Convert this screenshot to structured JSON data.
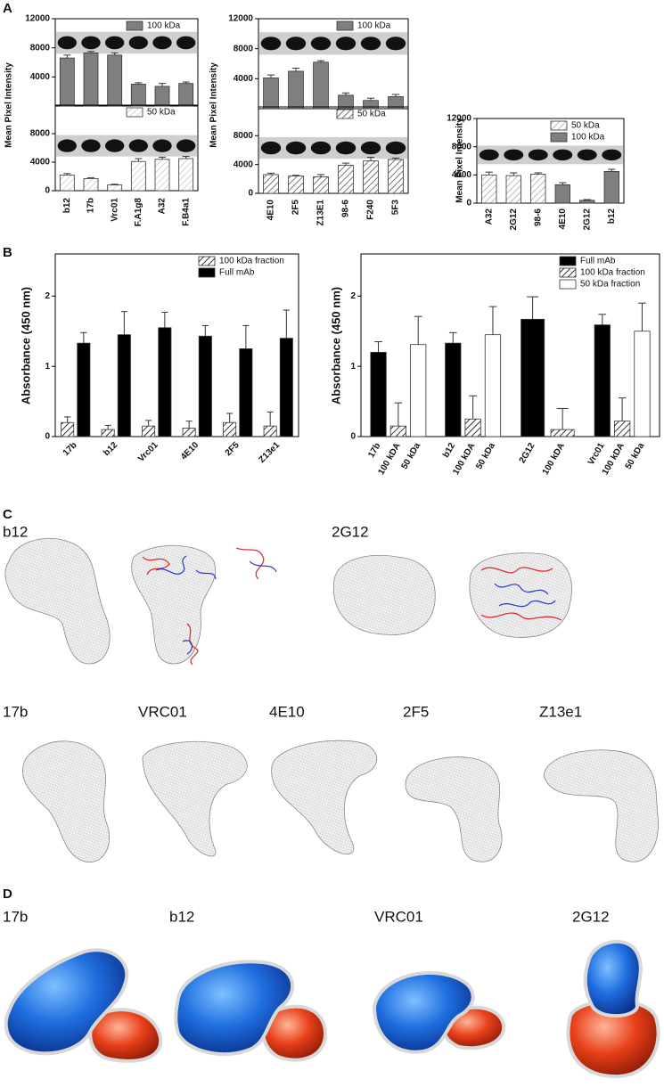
{
  "panel_labels": [
    "A",
    "B",
    "C",
    "D"
  ],
  "structures": {
    "C": [
      "b12",
      "2G12",
      "17b",
      "VRC01",
      "4E10",
      "2F5",
      "Z13e1"
    ],
    "D": [
      "17b",
      "b12",
      "VRC01",
      "2G12"
    ]
  },
  "chart_data": [
    {
      "type": "bar",
      "ylabel": "Mean Pixel Intensity",
      "legend": "upper right",
      "categories": [
        "b12",
        "17b",
        "Vrc01",
        "F.A1g8",
        "A32",
        "F.B4a1"
      ],
      "subplots": [
        {
          "ylim": [
            0,
            12000
          ],
          "yticks": [
            4000,
            8000,
            12000
          ],
          "blot": true,
          "series": [
            {
              "name": "100 kDa",
              "color": "#7f7f7f",
              "hatch": false,
              "values": [
                6600,
                7300,
                7000,
                3000,
                2700,
                3100
              ],
              "errors": [
                400,
                200,
                300,
                200,
                400,
                200
              ]
            }
          ]
        },
        {
          "ylim": [
            0,
            12000
          ],
          "yticks": [
            0,
            4000,
            8000
          ],
          "blot": true,
          "series": [
            {
              "name": "50 kDa",
              "color": "#cccccc",
              "hatch": true,
              "values": [
                2200,
                1700,
                800,
                4100,
                4400,
                4500
              ],
              "errors": [
                200,
                100,
                100,
                400,
                300,
                300
              ]
            }
          ]
        }
      ]
    },
    {
      "type": "bar",
      "ylabel": "Mean Pixel Intensity",
      "legend": "upper right",
      "categories": [
        "4E10",
        "2F5",
        "Z13E1",
        "98-6",
        "F240",
        "5F3"
      ],
      "subplots": [
        {
          "ylim": [
            0,
            12000
          ],
          "yticks": [
            4000,
            8000,
            12000
          ],
          "blot": true,
          "series": [
            {
              "name": "100 kDa",
              "color": "#7f7f7f",
              "hatch": false,
              "values": [
                4100,
                5000,
                6200,
                1800,
                1100,
                1600
              ],
              "errors": [
                400,
                400,
                200,
                300,
                300,
                300
              ]
            }
          ]
        },
        {
          "ylim": [
            0,
            12000
          ],
          "yticks": [
            0,
            4000,
            8000
          ],
          "blot": true,
          "series": [
            {
              "name": "50 kDa",
              "color": "#555555",
              "hatch": true,
              "values": [
                2600,
                2400,
                2300,
                3900,
                4500,
                4700
              ],
              "errors": [
                200,
                100,
                300,
                300,
                500,
                200
              ]
            }
          ]
        }
      ]
    },
    {
      "type": "bar",
      "ylabel": "Mean Pixel Intensity",
      "legend": "upper right",
      "categories": [
        "A32",
        "2G12",
        "98-6",
        "4E10",
        "2G12",
        "b12"
      ],
      "subplots": [
        {
          "ylim": [
            0,
            12000
          ],
          "yticks": [
            0,
            4000,
            8000,
            12000
          ],
          "blot": true,
          "series": [
            {
              "name": "50 kDa",
              "color": "#aaaaaa",
              "hatch": true,
              "values": [
                4000,
                3900,
                4100,
                null,
                null,
                null
              ],
              "errors": [
                400,
                400,
                200,
                null,
                null,
                null
              ]
            },
            {
              "name": "100 kDa",
              "color": "#7f7f7f",
              "hatch": false,
              "values": [
                null,
                null,
                null,
                2600,
                400,
                4500
              ],
              "errors": [
                null,
                null,
                null,
                300,
                100,
                300
              ]
            }
          ]
        }
      ]
    },
    {
      "type": "bar",
      "ylabel": "Absorbance (450 nm)",
      "legend": "upper right",
      "categories": [
        "17b",
        "b12",
        "Vrc01",
        "4E10",
        "2F5",
        "Z13e1"
      ],
      "subplots": [
        {
          "ylim": [
            0,
            2.6
          ],
          "yticks": [
            0,
            1,
            2
          ],
          "blot": false,
          "series": [
            {
              "name": "100 kDa fraction",
              "color": "#000000",
              "hatch": true,
              "values": [
                0.2,
                0.1,
                0.15,
                0.12,
                0.2,
                0.15
              ],
              "errors": [
                0.08,
                0.06,
                0.08,
                0.1,
                0.13,
                0.2
              ]
            },
            {
              "name": "Full mAb",
              "color": "#000000",
              "hatch": false,
              "values": [
                1.33,
                1.45,
                1.55,
                1.43,
                1.25,
                1.4
              ],
              "errors": [
                0.15,
                0.33,
                0.22,
                0.15,
                0.33,
                0.4
              ]
            }
          ]
        }
      ]
    },
    {
      "type": "bar",
      "ylabel": "Absorbance (450 nm)",
      "legend": "upper right",
      "categories": [
        [
          "17b",
          "100 kDA",
          "50 kDa"
        ],
        [
          "b12",
          "100 kDA",
          "50 kDa"
        ],
        [
          "2G12",
          "100 kDA"
        ],
        [
          "Vrc01",
          "100 kDA",
          "50 kDa"
        ]
      ],
      "subplots": [
        {
          "ylim": [
            0,
            2.6
          ],
          "yticks": [
            0,
            1,
            2
          ],
          "blot": false,
          "series": [
            {
              "name": "Full mAb",
              "color": "#000000",
              "hatch": false,
              "values": [
                1.2,
                1.33,
                1.67,
                1.59
              ],
              "errors": [
                0.15,
                0.15,
                0.32,
                0.15
              ]
            },
            {
              "name": "100 kDa fraction",
              "color": "#000000",
              "hatch": true,
              "values": [
                0.15,
                0.25,
                0.1,
                0.22
              ],
              "errors": [
                0.33,
                0.33,
                0.3,
                0.33
              ]
            },
            {
              "name": "50 kDa fraction",
              "color": "#ffffff",
              "hatch": false,
              "values": [
                1.31,
                1.45,
                null,
                1.5
              ],
              "errors": [
                0.4,
                0.4,
                null,
                0.4
              ]
            }
          ]
        }
      ]
    }
  ]
}
